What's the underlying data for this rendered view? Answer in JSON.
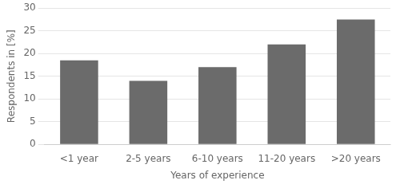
{
  "chart_data": {
    "type": "bar",
    "categories": [
      "<1 year",
      "2-5 years",
      "6-10 years",
      "11-20 years",
      ">20 years"
    ],
    "values": [
      18.5,
      14.0,
      17.0,
      22.0,
      27.5
    ],
    "color": "#6b6b6b",
    "xlabel": "Years of experience",
    "ylabel": "Respondents in [%]",
    "ylim": [
      0,
      30
    ],
    "yticks": [
      0,
      5,
      10,
      15,
      20,
      25,
      30
    ],
    "grid": true
  }
}
